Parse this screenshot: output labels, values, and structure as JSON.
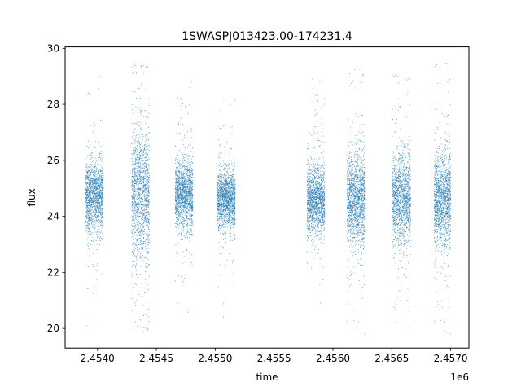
{
  "chart_data": {
    "type": "scatter",
    "title": "1SWASPJ013423.00-174231.4",
    "xlabel": "time",
    "ylabel": "flux",
    "x_offset_label": "1e6",
    "xlim": [
      2453725,
      2457155
    ],
    "ylim": [
      19.3,
      30.05
    ],
    "x_ticks": [
      2454000,
      2454500,
      2455000,
      2455500,
      2456000,
      2456500,
      2457000
    ],
    "x_tick_labels": [
      "2.4540",
      "2.4545",
      "2.4550",
      "2.4555",
      "2.4560",
      "2.4565",
      "2.4570"
    ],
    "y_ticks": [
      20,
      22,
      24,
      26,
      28,
      30
    ],
    "y_tick_labels": [
      "20",
      "22",
      "24",
      "26",
      "28",
      "30"
    ],
    "grid": false,
    "marker_color": "#1f77b4",
    "series": [
      {
        "values_summary": "Dense point clusters (observing seasons) with median flux ~24.6",
        "seasons": [
          {
            "x_start": 2453900,
            "x_end": 2454050,
            "median": 24.7,
            "spread": 0.6,
            "min": 19.8,
            "max": 29.5
          },
          {
            "x_start": 2454290,
            "x_end": 2454440,
            "median": 24.8,
            "spread": 1.2,
            "min": 19.8,
            "max": 29.6
          },
          {
            "x_start": 2454660,
            "x_end": 2454810,
            "median": 24.8,
            "spread": 0.6,
            "min": 20.1,
            "max": 29.0
          },
          {
            "x_start": 2455020,
            "x_end": 2455170,
            "median": 24.6,
            "spread": 0.5,
            "min": 19.8,
            "max": 29.4
          },
          {
            "x_start": 2455780,
            "x_end": 2455930,
            "median": 24.6,
            "spread": 0.6,
            "min": 19.8,
            "max": 29.0
          },
          {
            "x_start": 2456120,
            "x_end": 2456270,
            "median": 24.6,
            "spread": 0.8,
            "min": 19.8,
            "max": 29.3
          },
          {
            "x_start": 2456500,
            "x_end": 2456660,
            "median": 24.6,
            "spread": 0.8,
            "min": 19.8,
            "max": 29.2
          },
          {
            "x_start": 2456860,
            "x_end": 2457000,
            "median": 24.6,
            "spread": 0.8,
            "min": 19.8,
            "max": 29.5
          }
        ]
      }
    ]
  }
}
